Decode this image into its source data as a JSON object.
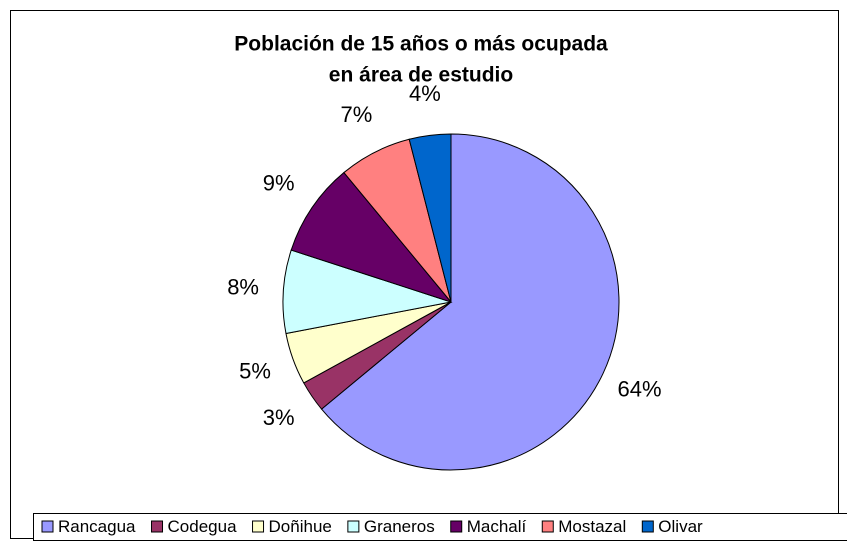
{
  "chart_data": {
    "type": "pie",
    "title": [
      "Población de 15 años o más ocupada",
      "en área de estudio"
    ],
    "categories": [
      "Rancagua",
      "Codegua",
      "Doñihue",
      "Graneros",
      "Machalí",
      "Mostazal",
      "Olivar"
    ],
    "values": [
      64,
      3,
      5,
      8,
      9,
      7,
      4
    ],
    "value_labels": [
      "64%",
      "3%",
      "5%",
      "8%",
      "9%",
      "7%",
      "4%"
    ],
    "colors": [
      "#9999ff",
      "#993366",
      "#ffffcc",
      "#ccffff",
      "#660066",
      "#ff8080",
      "#0066cc"
    ],
    "legend": "bottom"
  }
}
